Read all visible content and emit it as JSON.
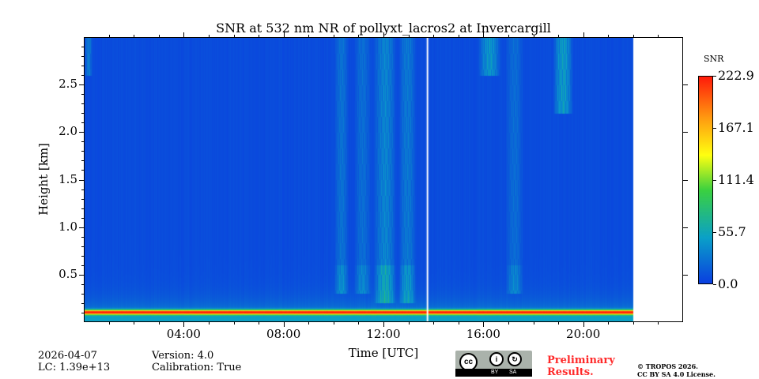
{
  "chart_data": {
    "type": "heatmap",
    "title": "SNR at 532 nm NR of pollyxt_lacros2 at Invercargill",
    "xlabel": "Time [UTC]",
    "ylabel": "Height [km]",
    "xlim_hours": [
      0,
      24
    ],
    "ylim_km": [
      0,
      3.0
    ],
    "data_end_hours": 22,
    "x_ticks": [
      "04:00",
      "08:00",
      "12:00",
      "16:00",
      "20:00"
    ],
    "x_tick_hours": [
      4,
      8,
      12,
      16,
      20
    ],
    "y_ticks": [
      "0.5",
      "1.0",
      "1.5",
      "2.0",
      "2.5"
    ],
    "y_tick_values": [
      0.5,
      1.0,
      1.5,
      2.0,
      2.5
    ],
    "colorbar": {
      "label": "SNR",
      "min": 0.0,
      "max": 222.9,
      "ticks": [
        "0.0",
        "55.7",
        "111.4",
        "167.1",
        "222.9"
      ],
      "tick_values": [
        0,
        55.7,
        111.4,
        167.1,
        222.9
      ]
    },
    "background_snr": 5,
    "near_range_band": {
      "height_km": 0.1,
      "snr": 200
    },
    "cloud_features": [
      {
        "start_h": 0.0,
        "end_h": 0.3,
        "base_km": 2.6,
        "top_km": 3.0,
        "snr": 60
      },
      {
        "start_h": 10.0,
        "end_h": 10.6,
        "base_km": 0.3,
        "top_km": 3.0,
        "snr": 45
      },
      {
        "start_h": 10.8,
        "end_h": 11.5,
        "base_km": 0.3,
        "top_km": 3.0,
        "snr": 40
      },
      {
        "start_h": 11.6,
        "end_h": 12.5,
        "base_km": 0.2,
        "top_km": 3.0,
        "snr": 70
      },
      {
        "start_h": 12.6,
        "end_h": 13.3,
        "base_km": 0.2,
        "top_km": 3.0,
        "snr": 55
      },
      {
        "start_h": 15.8,
        "end_h": 16.7,
        "base_km": 2.6,
        "top_km": 3.0,
        "snr": 90
      },
      {
        "start_h": 16.9,
        "end_h": 17.6,
        "base_km": 0.3,
        "top_km": 3.0,
        "snr": 40
      },
      {
        "start_h": 18.8,
        "end_h": 19.6,
        "base_km": 2.2,
        "top_km": 3.0,
        "snr": 100
      }
    ]
  },
  "meta": {
    "date": "2026-04-07",
    "lc": "LC: 1.39e+13",
    "version": "Version: 4.0",
    "calibration": "Calibration: True"
  },
  "license": {
    "cc": "cc",
    "by": "BY",
    "sa": "SA",
    "preliminary_1": "Preliminary",
    "preliminary_2": "Results.",
    "copyright": "© TROPOS 2026.",
    "license": "CC BY SA 4.0 License."
  }
}
